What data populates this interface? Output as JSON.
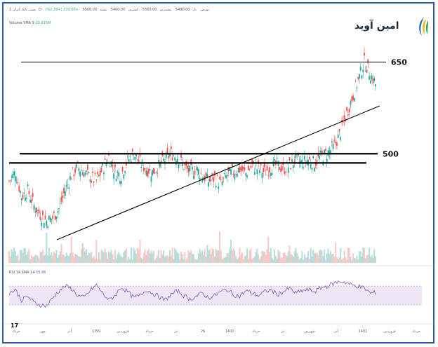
{
  "header": {
    "symbol": "پست بانک ایران",
    "timeframe": "1D",
    "exchange": "بورس",
    "open_label": "باز",
    "open_value": "5490.00",
    "high_label": "بیشترین",
    "high_value": "5560.00",
    "low_label": "کمترین",
    "low_value": "5400.00",
    "close_label": "بسته",
    "close_value": "5560.00",
    "change": "+130.00 (+2.39%)"
  },
  "volume_label": {
    "text": "Volume SMA 9",
    "value": "20.915M"
  },
  "rsi_label": {
    "text": "RSI 14 SMA 14",
    "value": "55.86"
  },
  "logo": {
    "text": "امین آوید",
    "icon": "amin-avid-logo-icon"
  },
  "colors": {
    "up": "#26a69a",
    "down": "#ef5350",
    "rsi": "#7e57c2",
    "level": "#000000",
    "frame": "#2f5aa8"
  },
  "chart_data": {
    "type": "candlestick",
    "price_levels": [
      {
        "label": "650",
        "value": 650
      },
      {
        "label": "500",
        "value": 500
      }
    ],
    "support_level": 485,
    "trendline": {
      "from": {
        "date_label": "آذر",
        "price": 390
      },
      "to": {
        "date_label": "1401",
        "price": 500
      }
    },
    "close_path": [
      455,
      470,
      430,
      440,
      415,
      400,
      390,
      395,
      410,
      440,
      465,
      478,
      470,
      462,
      455,
      475,
      495,
      470,
      465,
      490,
      500,
      485,
      475,
      470,
      480,
      490,
      500,
      495,
      480,
      470,
      475,
      465,
      455,
      460,
      450,
      465,
      470,
      475,
      468,
      480,
      475,
      470,
      478,
      482,
      475,
      480,
      490,
      485,
      490,
      485,
      495,
      500,
      510,
      530,
      560,
      590,
      620,
      650,
      630,
      610
    ],
    "rsi": {
      "levels": [
        70,
        30
      ],
      "values": [
        55,
        62,
        40,
        48,
        35,
        30,
        28,
        45,
        60,
        70,
        65,
        50,
        45,
        60,
        72,
        55,
        40,
        50,
        68,
        58,
        45,
        50,
        62,
        55,
        48,
        40,
        52,
        60,
        50,
        42,
        48,
        55,
        45,
        50,
        58,
        62,
        52,
        48,
        60,
        55,
        50,
        58,
        62,
        52,
        58,
        65,
        55,
        60,
        62,
        58,
        66,
        70,
        75,
        80,
        78,
        72,
        70,
        65,
        55,
        56
      ]
    },
    "x_tick_labels": [
      "خرداد",
      "مهر",
      "آذر",
      "1399",
      "فروردین",
      "خرداد",
      "تیر",
      "26",
      "1400",
      "خرداد",
      "تیر",
      "شهریور",
      "آذر",
      "1401",
      "فروردین",
      "خرداد"
    ]
  }
}
